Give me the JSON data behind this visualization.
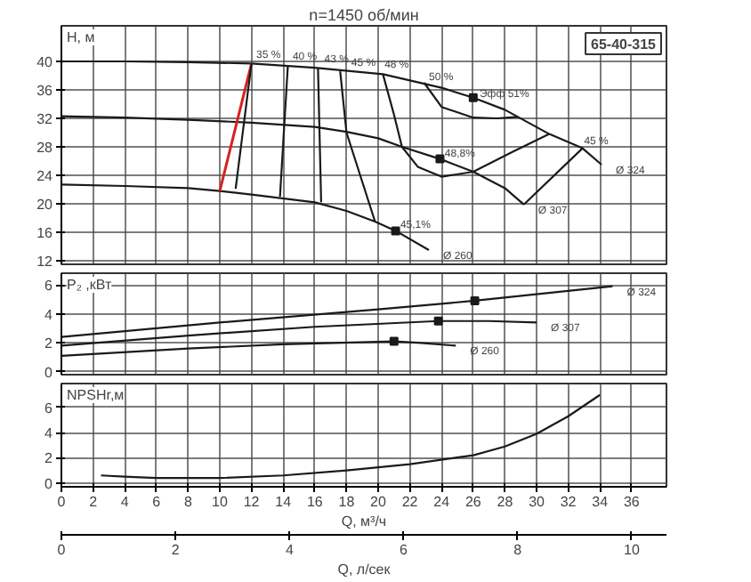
{
  "chart_data": [
    {
      "type": "line",
      "title": "n=1450 об/мин",
      "ylabel": "H, м",
      "xlim": [
        0,
        38.2
      ],
      "xticks": [
        0,
        2,
        4,
        6,
        8,
        10,
        12,
        14,
        16,
        18,
        20,
        22,
        24,
        26,
        28,
        30,
        32,
        34,
        36
      ],
      "ylim": [
        11.5,
        45
      ],
      "yticks": [
        12,
        16,
        20,
        24,
        28,
        32,
        36,
        40
      ],
      "grid": true,
      "tick_labels": "y",
      "series": [
        {
          "color": "#1a1a1a",
          "x": [
            0,
            4,
            8,
            12,
            16,
            20.3,
            24,
            26,
            28,
            30.8,
            32.9,
            34.1
          ],
          "values": [
            40,
            40,
            39.9,
            39.7,
            39.1,
            38.2,
            36.3,
            34.9,
            33.2,
            29.8,
            27.8,
            25.5
          ]
        },
        {
          "color": "#1a1a1a",
          "x": [
            0,
            4,
            8,
            12,
            16,
            18,
            20,
            21.5,
            23.9,
            26,
            28,
            29.2
          ],
          "values": [
            32.3,
            32.1,
            31.8,
            31.4,
            30.8,
            30.1,
            29.2,
            28.0,
            26.3,
            24.5,
            22.2,
            19.9
          ]
        },
        {
          "color": "#1a1a1a",
          "x": [
            0,
            4,
            8,
            10,
            12,
            16,
            18,
            19.8,
            21.1,
            23.2
          ],
          "values": [
            22.7,
            22.5,
            22.2,
            21.8,
            21.3,
            20.2,
            19,
            17.5,
            16.2,
            13.5
          ]
        },
        {
          "color": "#d62020",
          "x": [
            12,
            10
          ],
          "values": [
            39.7,
            21.8
          ]
        },
        {
          "color": "#1a1a1a",
          "x": [
            12,
            11
          ],
          "values": [
            39.7,
            22.1
          ]
        },
        {
          "color": "#1a1a1a",
          "x": [
            14.3,
            13.8
          ],
          "values": [
            39.5,
            21.0
          ]
        },
        {
          "color": "#1a1a1a",
          "x": [
            16.2,
            16.4
          ],
          "values": [
            39.1,
            20.2
          ]
        },
        {
          "color": "#1a1a1a",
          "x": [
            17.6,
            18.0,
            19.8
          ],
          "values": [
            38.6,
            30,
            17.5
          ]
        },
        {
          "color": "#1a1a1a",
          "x": [
            20.3,
            21.0,
            21.5,
            22.5,
            24,
            26,
            28.5,
            30.8
          ],
          "values": [
            38.2,
            32.5,
            28,
            25.2,
            23.8,
            24.5,
            27.3,
            29.8
          ]
        },
        {
          "color": "#1a1a1a",
          "x": [
            22.9,
            24,
            26,
            27.5,
            28.8
          ],
          "values": [
            37,
            33.6,
            32.1,
            32,
            32.2
          ]
        },
        {
          "color": "#1a1a1a",
          "x": [
            32.9,
            29.2
          ],
          "values": [
            27.8,
            19.9
          ]
        },
        {
          "type": "scatter",
          "marker": "square",
          "color": "#1a1a1a",
          "x": [
            26,
            23.9,
            21.1
          ],
          "values": [
            34.9,
            26.3,
            16.2
          ]
        }
      ],
      "annotations": [
        "65-40-315",
        {
          "text": "35 %",
          "x": 12.3,
          "y": 40.8
        },
        {
          "text": "40 %",
          "x": 14.6,
          "y": 40.5
        },
        {
          "text": "43 %",
          "x": 16.6,
          "y": 40.1
        },
        {
          "text": "45 %",
          "x": 18.3,
          "y": 39.6
        },
        {
          "text": "48 %",
          "x": 20.4,
          "y": 39.4
        },
        {
          "text": "50 %",
          "x": 23.2,
          "y": 37.6
        },
        {
          "text": "Эфф  51%",
          "x": 26.4,
          "y": 35.2
        },
        {
          "text": "48,8%",
          "x": 24.2,
          "y": 26.9
        },
        {
          "text": "45,1%",
          "x": 21.4,
          "y": 16.9
        },
        {
          "text": "45 %",
          "x": 33.0,
          "y": 28.6
        },
        {
          "text": "Ø 324",
          "x": 34.1,
          "y": 25.5
        },
        {
          "text": "Ø 307",
          "x": 29.2,
          "y": 19.9
        },
        {
          "text": "Ø 260",
          "x": 23.2,
          "y": 13.5
        }
      ]
    },
    {
      "type": "line",
      "ylabel": "P₂ ,кВт",
      "xlim": [
        0,
        38.2
      ],
      "xticks": [
        0,
        2,
        4,
        6,
        8,
        10,
        12,
        14,
        16,
        18,
        20,
        22,
        24,
        26,
        28,
        30,
        32,
        34,
        36
      ],
      "ylim": [
        -0.2,
        6.8
      ],
      "yticks": [
        0,
        2,
        4,
        6
      ],
      "grid": true,
      "tick_labels": "y",
      "series": [
        {
          "color": "#1a1a1a",
          "x": [
            0,
            10,
            20,
            26.1,
            34.8
          ],
          "values": [
            2.4,
            3.4,
            4.3,
            4.9,
            5.9
          ]
        },
        {
          "color": "#1a1a1a",
          "x": [
            0,
            8,
            16,
            23.8,
            27,
            30
          ],
          "values": [
            1.8,
            2.5,
            3.1,
            3.5,
            3.5,
            3.4
          ]
        },
        {
          "color": "#1a1a1a",
          "x": [
            0,
            8,
            14,
            21,
            22.5,
            24.9
          ],
          "values": [
            1.1,
            1.6,
            1.9,
            2.1,
            2.0,
            1.8
          ]
        },
        {
          "type": "scatter",
          "marker": "square",
          "color": "#1a1a1a",
          "x": [
            26.1,
            23.8,
            21.0
          ],
          "values": [
            4.9,
            3.5,
            2.1
          ]
        }
      ],
      "annotations": [
        {
          "text": "Ø 324",
          "x": 34.8,
          "y": 5.9
        },
        {
          "text": "Ø 307",
          "x": 30,
          "y": 3.4
        },
        {
          "text": "Ø 260",
          "x": 24.9,
          "y": 1.8
        }
      ]
    },
    {
      "type": "line",
      "ylabel": "NPSHr,м",
      "xlabel": "Q, м³/ч",
      "x2label": "Q, л/сек",
      "xlim": [
        0,
        38.2
      ],
      "xticks": [
        0,
        2,
        4,
        6,
        8,
        10,
        12,
        14,
        16,
        18,
        20,
        22,
        24,
        26,
        28,
        30,
        32,
        34,
        36
      ],
      "x2lim": [
        0,
        10.61
      ],
      "x2ticks": [
        0,
        2,
        4,
        6,
        8,
        10
      ],
      "ylim": [
        -0.3,
        7.9
      ],
      "yticks": [
        0,
        2,
        4,
        6
      ],
      "grid": true,
      "series": [
        {
          "color": "#1a1a1a",
          "x": [
            2.5,
            4,
            6,
            10,
            14,
            18,
            22,
            26,
            28,
            30,
            32,
            34
          ],
          "values": [
            0.6,
            0.5,
            0.4,
            0.4,
            0.6,
            1.0,
            1.5,
            2.2,
            2.9,
            3.9,
            5.3,
            7.0
          ]
        }
      ]
    }
  ]
}
